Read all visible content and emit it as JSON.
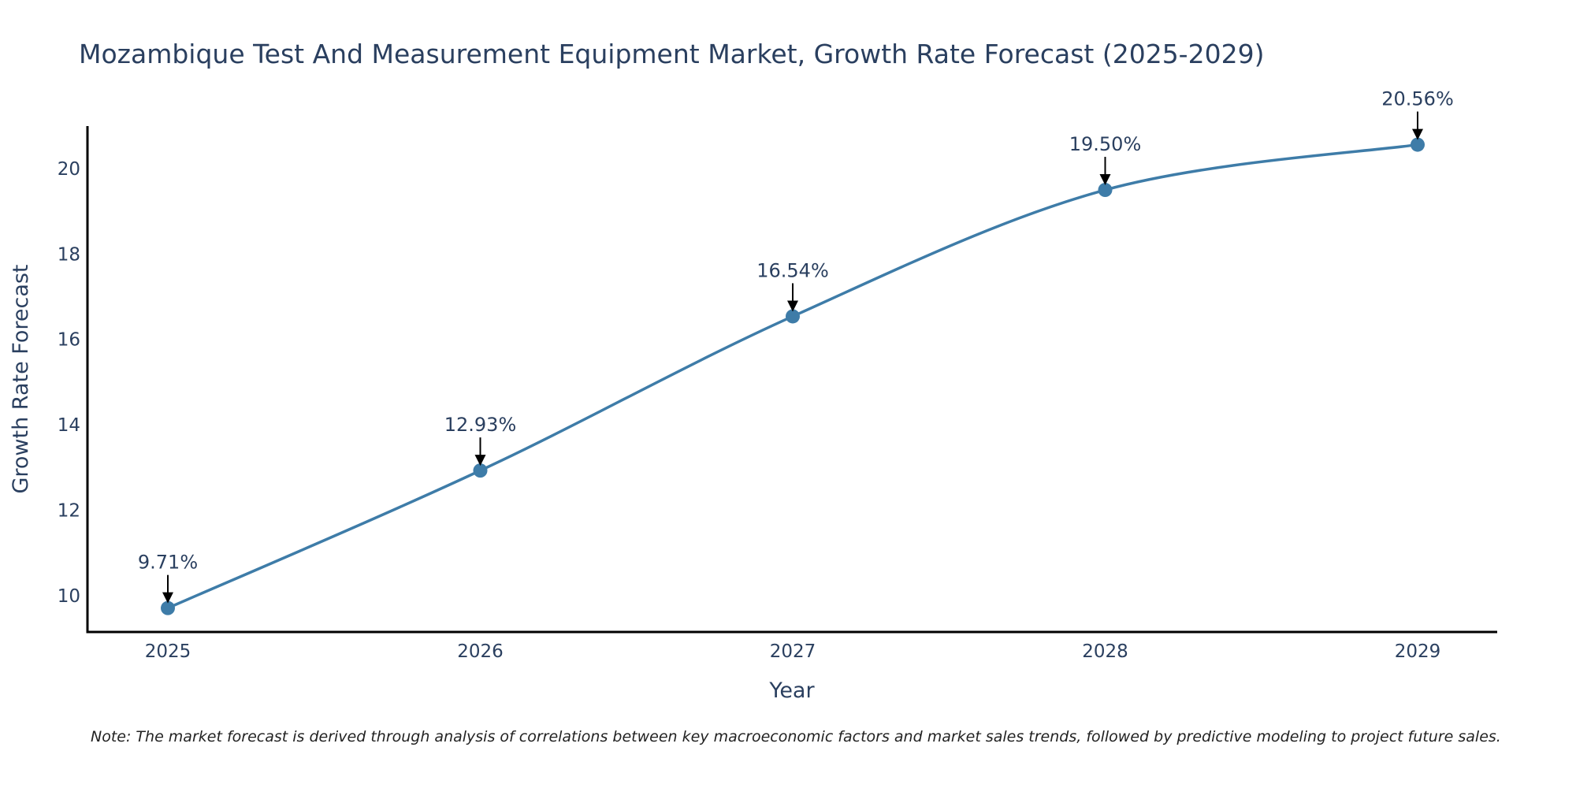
{
  "chart_data": {
    "type": "line",
    "title": "Mozambique Test And Measurement Equipment Market, Growth Rate Forecast (2025-2029)",
    "xlabel": "Year",
    "ylabel": "Growth Rate Forecast",
    "categories": [
      "2025",
      "2026",
      "2027",
      "2028",
      "2029"
    ],
    "values": [
      9.71,
      12.93,
      16.54,
      19.5,
      20.56
    ],
    "data_labels": [
      "9.71%",
      "12.93%",
      "16.54%",
      "19.50%",
      "20.56%"
    ],
    "y_ticks": [
      10,
      12,
      14,
      16,
      18,
      20
    ],
    "ylim": [
      9.15,
      21.0
    ],
    "grid": false,
    "legend": "none",
    "line_color": "#3e7ca8",
    "marker_color": "#3e7ca8",
    "arrow_color": "#000000",
    "line_shape": "spline"
  },
  "note": "Note: The market forecast is derived through analysis of correlations between key macroeconomic factors and market sales trends, followed by predictive modeling to project future sales."
}
